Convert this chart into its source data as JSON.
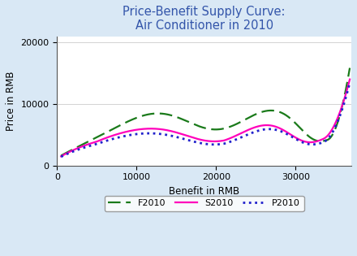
{
  "title": "Price-Benefit Supply Curve:\nAir Conditioner in 2010",
  "xlabel": "Benefit in RMB",
  "ylabel": "Price in RMB",
  "xlim": [
    0,
    37000
  ],
  "ylim": [
    0,
    21000
  ],
  "xticks": [
    0,
    10000,
    20000,
    30000
  ],
  "yticks": [
    0,
    10000,
    20000
  ],
  "background_color": "#d9e8f5",
  "plot_background": "#ffffff",
  "legend_entries": [
    "F2010",
    "S2010",
    "P2010"
  ],
  "F2010_color": "#1a7a1a",
  "S2010_color": "#ff00bb",
  "P2010_color": "#2222cc",
  "title_color": "#3355aa",
  "title_fontsize": 10.5,
  "label_fontsize": 8.5,
  "tick_fontsize": 8
}
